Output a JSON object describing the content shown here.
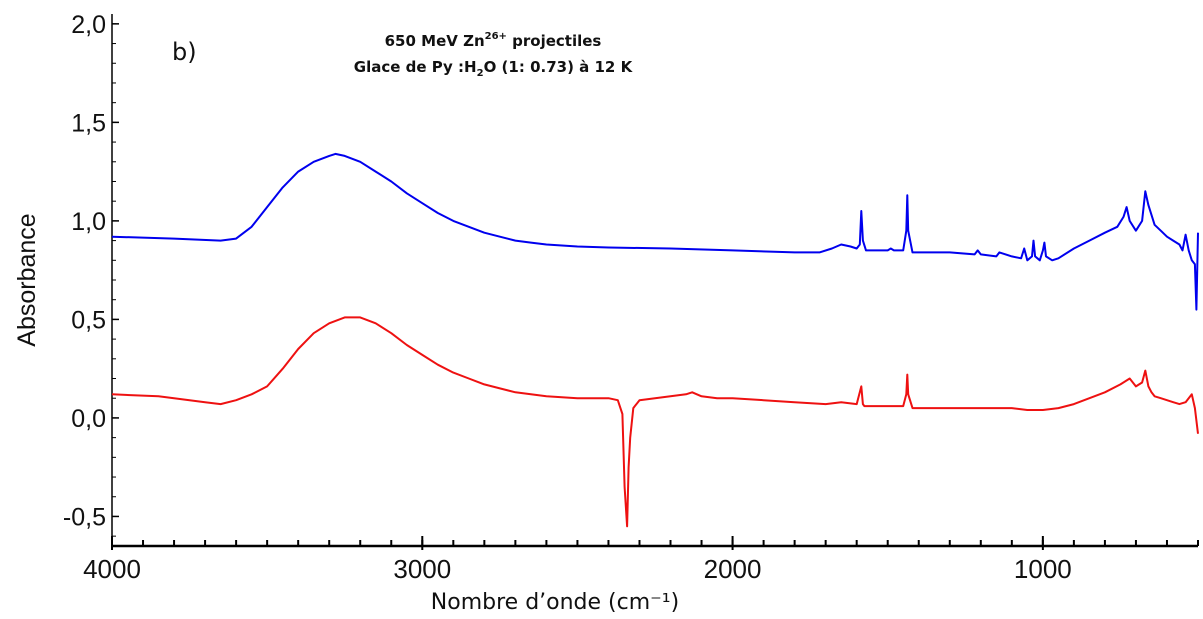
{
  "chart_data": {
    "type": "line",
    "panel_label": "b)",
    "title_line1": "650 MeV  Zn",
    "title_line1_sup": "26+",
    "title_line1_end": " projectiles",
    "title_line2": "Glace de Py :H",
    "title_line2_sub": "2",
    "title_line2_end": "O (1: 0.73)  à 12 K",
    "xlabel": "Nombre d’onde (cm⁻¹)",
    "ylabel": "Absorbance",
    "xlim": [
      4000,
      500
    ],
    "ylim": [
      -0.65,
      2.05
    ],
    "x_reversed": true,
    "x_ticks": [
      4000,
      3000,
      2000,
      1000
    ],
    "x_tick_labels": [
      "4000",
      "3000",
      "2000",
      "1000"
    ],
    "y_ticks": [
      2.0,
      1.5,
      1.0,
      0.5,
      0.0,
      -0.5
    ],
    "y_tick_labels": [
      "2,0",
      "1,5",
      "1,0",
      "0,5",
      "0,0",
      "-0,5"
    ],
    "colors": {
      "series_top": "#0000ee",
      "series_bottom": "#ee1111"
    },
    "series": [
      {
        "x": [
          4000,
          3800,
          3650,
          3600,
          3550,
          3500,
          3450,
          3400,
          3350,
          3300,
          3280,
          3250,
          3200,
          3150,
          3100,
          3050,
          3000,
          2950,
          2900,
          2850,
          2800,
          2750,
          2700,
          2650,
          2600,
          2500,
          2400,
          2200,
          2000,
          1800,
          1720,
          1680,
          1650,
          1620,
          1600,
          1590,
          1585,
          1580,
          1570,
          1500,
          1490,
          1480,
          1450,
          1440,
          1437,
          1434,
          1420,
          1300,
          1220,
          1210,
          1200,
          1150,
          1140,
          1100,
          1070,
          1060,
          1050,
          1035,
          1030,
          1025,
          1010,
          1000,
          995,
          990,
          970,
          950,
          900,
          850,
          800,
          760,
          740,
          730,
          720,
          700,
          680,
          670,
          660,
          640,
          620,
          600,
          580,
          560,
          550,
          540,
          530,
          520,
          510,
          505,
          500
        ],
        "y": [
          0.92,
          0.91,
          0.9,
          0.91,
          0.97,
          1.07,
          1.17,
          1.25,
          1.3,
          1.33,
          1.34,
          1.33,
          1.3,
          1.25,
          1.2,
          1.14,
          1.09,
          1.04,
          1.0,
          0.97,
          0.94,
          0.92,
          0.9,
          0.89,
          0.88,
          0.87,
          0.865,
          0.86,
          0.85,
          0.84,
          0.84,
          0.86,
          0.88,
          0.87,
          0.86,
          0.88,
          1.05,
          0.9,
          0.85,
          0.85,
          0.86,
          0.85,
          0.85,
          0.95,
          1.13,
          0.95,
          0.84,
          0.84,
          0.83,
          0.85,
          0.83,
          0.82,
          0.84,
          0.82,
          0.81,
          0.86,
          0.8,
          0.82,
          0.9,
          0.82,
          0.8,
          0.85,
          0.89,
          0.82,
          0.8,
          0.81,
          0.86,
          0.9,
          0.94,
          0.97,
          1.02,
          1.07,
          1.0,
          0.95,
          1.0,
          1.15,
          1.08,
          0.98,
          0.95,
          0.92,
          0.9,
          0.88,
          0.85,
          0.93,
          0.85,
          0.8,
          0.78,
          0.55,
          0.94
        ]
      },
      {
        "x": [
          4000,
          3850,
          3800,
          3700,
          3650,
          3600,
          3550,
          3500,
          3450,
          3400,
          3350,
          3300,
          3250,
          3200,
          3150,
          3100,
          3050,
          3000,
          2950,
          2900,
          2850,
          2800,
          2750,
          2700,
          2650,
          2600,
          2500,
          2400,
          2370,
          2355,
          2348,
          2340,
          2335,
          2330,
          2320,
          2300,
          2250,
          2200,
          2150,
          2130,
          2100,
          2050,
          2000,
          1900,
          1800,
          1700,
          1650,
          1600,
          1585,
          1580,
          1575,
          1550,
          1500,
          1450,
          1440,
          1437,
          1434,
          1420,
          1400,
          1300,
          1200,
          1100,
          1050,
          1000,
          950,
          900,
          850,
          800,
          750,
          720,
          700,
          680,
          670,
          660,
          650,
          640,
          620,
          600,
          580,
          560,
          540,
          520,
          510,
          500
        ],
        "y": [
          0.12,
          0.11,
          0.1,
          0.08,
          0.07,
          0.09,
          0.12,
          0.16,
          0.25,
          0.35,
          0.43,
          0.48,
          0.51,
          0.51,
          0.48,
          0.43,
          0.37,
          0.32,
          0.27,
          0.23,
          0.2,
          0.17,
          0.15,
          0.13,
          0.12,
          0.11,
          0.1,
          0.1,
          0.09,
          0.02,
          -0.35,
          -0.55,
          -0.25,
          -0.1,
          0.05,
          0.09,
          0.1,
          0.11,
          0.12,
          0.13,
          0.11,
          0.1,
          0.1,
          0.09,
          0.08,
          0.07,
          0.08,
          0.07,
          0.16,
          0.07,
          0.06,
          0.06,
          0.06,
          0.06,
          0.12,
          0.22,
          0.12,
          0.05,
          0.05,
          0.05,
          0.05,
          0.05,
          0.04,
          0.04,
          0.05,
          0.07,
          0.1,
          0.13,
          0.17,
          0.2,
          0.16,
          0.18,
          0.24,
          0.16,
          0.13,
          0.11,
          0.1,
          0.09,
          0.08,
          0.07,
          0.08,
          0.12,
          0.05,
          -0.08
        ]
      }
    ]
  }
}
